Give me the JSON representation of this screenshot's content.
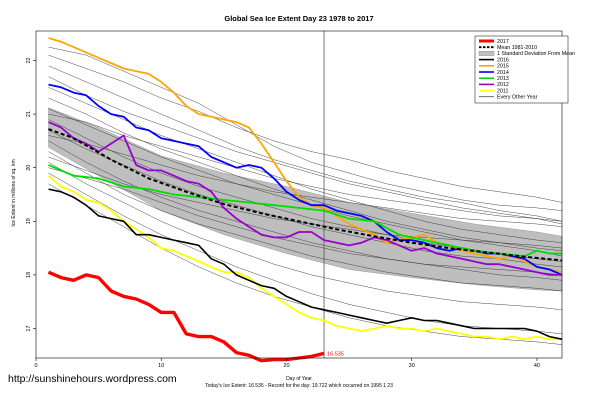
{
  "chart_data": {
    "type": "line",
    "title": "Global Sea Ice Extent Day 23 1978 to 2017",
    "xlabel": "Day of Year",
    "ylabel": "Ice Extent in millions of sq. km",
    "xlim": [
      0,
      42
    ],
    "ylim": [
      16.45,
      22.55
    ],
    "x_ticks": [
      0,
      10,
      20,
      30,
      40
    ],
    "y_ticks": [
      17,
      18,
      19,
      20,
      21,
      22
    ],
    "current_day": 23,
    "legend_position": "top-right",
    "legend": [
      {
        "label": "2017",
        "color": "#ff0000",
        "style": "thick"
      },
      {
        "label": "Mean 1981-2010",
        "color": "#000000",
        "style": "dashed"
      },
      {
        "label": "1 Standard Deviation From Mean",
        "color": "#c0c0c0",
        "style": "fill"
      },
      {
        "label": "2016",
        "color": "#000000",
        "style": "line"
      },
      {
        "label": "2015",
        "color": "#ffa500",
        "style": "line"
      },
      {
        "label": "2014",
        "color": "#0000ff",
        "style": "line"
      },
      {
        "label": "2013",
        "color": "#00dd00",
        "style": "line"
      },
      {
        "label": "2012",
        "color": "#9900cc",
        "style": "line"
      },
      {
        "label": "2011",
        "color": "#ffff00",
        "style": "line"
      },
      {
        "label": "Every Other Year",
        "color": "#000000",
        "style": "thin"
      }
    ],
    "band": {
      "x": [
        1,
        5,
        10,
        15,
        20,
        25,
        30,
        35,
        40,
        42
      ],
      "upper": [
        21.12,
        20.75,
        20.22,
        19.9,
        19.65,
        19.35,
        19.15,
        18.95,
        18.8,
        18.72
      ],
      "lower": [
        20.38,
        19.85,
        19.2,
        18.75,
        18.4,
        18.1,
        17.95,
        17.82,
        17.72,
        17.7
      ]
    },
    "mean": {
      "x": [
        1,
        3,
        6,
        9,
        12,
        15,
        18,
        21,
        24,
        27,
        30,
        33,
        36,
        39,
        42
      ],
      "y": [
        20.72,
        20.55,
        20.15,
        19.8,
        19.55,
        19.32,
        19.15,
        19.0,
        18.85,
        18.72,
        18.6,
        18.5,
        18.42,
        18.34,
        18.27
      ]
    },
    "highlight_series": [
      {
        "name": "2015",
        "color": "#ffa500",
        "width": 1.8,
        "x": [
          1,
          2,
          3,
          5,
          7,
          9,
          10,
          11,
          12,
          13,
          14,
          15,
          16,
          17,
          18,
          19,
          20,
          21,
          22,
          23,
          24,
          25,
          26,
          27,
          28,
          29,
          30,
          31,
          32,
          33,
          34,
          35,
          36,
          37,
          38,
          39,
          40,
          41,
          42
        ],
        "y": [
          22.42,
          22.35,
          22.25,
          22.05,
          21.85,
          21.75,
          21.6,
          21.4,
          21.15,
          21.0,
          20.95,
          20.9,
          20.85,
          20.75,
          20.45,
          20.1,
          19.75,
          19.45,
          19.3,
          19.25,
          19.1,
          18.95,
          18.85,
          18.75,
          18.6,
          18.65,
          18.7,
          18.75,
          18.6,
          18.55,
          18.45,
          18.4,
          18.35,
          18.3,
          18.35,
          18.25,
          18.15,
          18.1,
          18.05
        ]
      },
      {
        "name": "2014",
        "color": "#0000ff",
        "width": 1.8,
        "x": [
          1,
          2,
          3,
          4,
          5,
          6,
          7,
          8,
          9,
          10,
          11,
          12,
          13,
          14,
          15,
          16,
          17,
          18,
          19,
          20,
          21,
          22,
          23,
          24,
          25,
          26,
          27,
          28,
          29,
          30,
          31,
          32,
          33,
          34,
          35,
          36,
          37,
          38,
          39,
          40,
          41,
          42
        ],
        "y": [
          21.55,
          21.5,
          21.4,
          21.35,
          21.15,
          21.0,
          20.95,
          20.75,
          20.7,
          20.55,
          20.5,
          20.45,
          20.4,
          20.2,
          20.1,
          20.0,
          20.05,
          20.0,
          19.8,
          19.55,
          19.4,
          19.3,
          19.3,
          19.2,
          19.15,
          19.1,
          19.0,
          18.8,
          18.65,
          18.65,
          18.6,
          18.5,
          18.45,
          18.5,
          18.45,
          18.4,
          18.4,
          18.35,
          18.3,
          18.15,
          18.1,
          18.0
        ]
      },
      {
        "name": "2013",
        "color": "#00dd00",
        "width": 1.8,
        "x": [
          1,
          3,
          5,
          7,
          9,
          11,
          13,
          15,
          17,
          19,
          21,
          23,
          25,
          27,
          29,
          31,
          33,
          35,
          37,
          39,
          40,
          41,
          42
        ],
        "y": [
          20.05,
          19.85,
          19.8,
          19.65,
          19.6,
          19.5,
          19.45,
          19.4,
          19.35,
          19.3,
          19.25,
          19.2,
          19.05,
          19.0,
          18.75,
          18.65,
          18.55,
          18.45,
          18.4,
          18.35,
          18.45,
          18.4,
          18.4
        ]
      },
      {
        "name": "2012",
        "color": "#9900cc",
        "width": 1.8,
        "x": [
          1,
          2,
          3,
          4,
          5,
          6,
          7,
          8,
          9,
          10,
          11,
          12,
          13,
          14,
          15,
          16,
          17,
          18,
          19,
          20,
          21,
          22,
          23,
          24,
          25,
          26,
          27,
          28,
          29,
          30,
          31,
          32,
          33,
          34,
          35,
          36,
          37,
          38,
          39,
          40,
          41,
          42
        ],
        "y": [
          20.85,
          20.75,
          20.55,
          20.45,
          20.3,
          20.45,
          20.6,
          20.05,
          19.95,
          19.95,
          19.85,
          19.75,
          19.7,
          19.55,
          19.25,
          19.05,
          18.9,
          18.75,
          18.7,
          18.7,
          18.8,
          18.8,
          18.65,
          18.6,
          18.55,
          18.6,
          18.7,
          18.65,
          18.55,
          18.45,
          18.5,
          18.4,
          18.35,
          18.3,
          18.25,
          18.2,
          18.2,
          18.15,
          18.1,
          18.05,
          18.0,
          18.0
        ]
      },
      {
        "name": "2011",
        "color": "#ffff00",
        "width": 1.8,
        "x": [
          1,
          2,
          3,
          4,
          5,
          6,
          7,
          8,
          9,
          10,
          11,
          12,
          13,
          14,
          15,
          16,
          17,
          18,
          19,
          20,
          21,
          22,
          23,
          24,
          25,
          26,
          27,
          28,
          29,
          30,
          31,
          32,
          33,
          34,
          35,
          36,
          37,
          38,
          39,
          40,
          41,
          42
        ],
        "y": [
          19.85,
          19.65,
          19.55,
          19.4,
          19.35,
          19.2,
          19.0,
          18.85,
          18.7,
          18.5,
          18.45,
          18.35,
          18.25,
          18.15,
          18.05,
          18.05,
          17.95,
          17.75,
          17.6,
          17.45,
          17.3,
          17.2,
          17.15,
          17.05,
          17.0,
          16.95,
          17.0,
          17.05,
          17.0,
          17.0,
          16.95,
          17.0,
          16.95,
          16.9,
          16.85,
          16.85,
          16.8,
          16.85,
          16.8,
          16.85,
          16.8,
          16.8
        ]
      },
      {
        "name": "2016",
        "color": "#000000",
        "width": 1.6,
        "x": [
          1,
          2,
          3,
          4,
          5,
          6,
          7,
          8,
          9,
          10,
          11,
          12,
          13,
          14,
          15,
          16,
          17,
          18,
          19,
          20,
          21,
          22,
          23,
          24,
          25,
          26,
          27,
          28,
          29,
          30,
          31,
          32,
          33,
          34,
          35,
          36,
          37,
          38,
          39,
          40,
          41,
          42
        ],
        "y": [
          19.6,
          19.55,
          19.45,
          19.3,
          19.1,
          19.05,
          19.0,
          18.75,
          18.75,
          18.7,
          18.65,
          18.6,
          18.55,
          18.3,
          18.2,
          18.0,
          17.9,
          17.8,
          17.75,
          17.6,
          17.5,
          17.4,
          17.35,
          17.3,
          17.25,
          17.2,
          17.15,
          17.1,
          17.15,
          17.2,
          17.15,
          17.15,
          17.1,
          17.05,
          17.0,
          17.0,
          17.0,
          17.0,
          17.0,
          16.95,
          16.85,
          16.8
        ]
      },
      {
        "name": "2017",
        "color": "#ff0000",
        "width": 3.4,
        "x": [
          1,
          2,
          3,
          4,
          5,
          6,
          7,
          8,
          9,
          10,
          11,
          12,
          13,
          14,
          15,
          16,
          17,
          18,
          19,
          20,
          21,
          22,
          23
        ],
        "y": [
          18.05,
          17.95,
          17.9,
          18.0,
          17.95,
          17.7,
          17.6,
          17.55,
          17.45,
          17.3,
          17.3,
          16.9,
          16.85,
          16.85,
          16.75,
          16.55,
          16.5,
          16.4,
          16.42,
          16.42,
          16.45,
          16.48,
          16.535
        ]
      }
    ],
    "end_label": "16.535",
    "other_years": [
      [
        22.25,
        22.1,
        21.8,
        21.5,
        21.2,
        20.8,
        20.4,
        20.1,
        19.9,
        19.7,
        19.55,
        19.4,
        19.3,
        19.25,
        19.2
      ],
      [
        22.1,
        21.85,
        21.6,
        21.3,
        21.05,
        20.75,
        20.5,
        20.3,
        20.15,
        19.95,
        19.8,
        19.65,
        19.55,
        19.45,
        19.35
      ],
      [
        21.9,
        21.6,
        21.3,
        21.0,
        20.7,
        20.4,
        20.15,
        19.95,
        19.75,
        19.6,
        19.45,
        19.35,
        19.2,
        19.1,
        19.0
      ],
      [
        21.7,
        21.35,
        21.05,
        20.8,
        20.55,
        20.3,
        20.1,
        19.9,
        19.7,
        19.55,
        19.4,
        19.25,
        19.15,
        19.05,
        18.95
      ],
      [
        21.5,
        21.2,
        20.9,
        20.6,
        20.35,
        20.1,
        19.85,
        19.6,
        19.4,
        19.2,
        19.0,
        18.85,
        18.75,
        18.65,
        18.6
      ],
      [
        21.3,
        21.0,
        20.65,
        20.35,
        20.1,
        19.85,
        19.6,
        19.4,
        19.2,
        19.0,
        18.85,
        18.7,
        18.6,
        18.5,
        18.45
      ],
      [
        21.1,
        20.8,
        20.5,
        20.2,
        19.95,
        19.7,
        19.5,
        19.3,
        19.1,
        18.95,
        18.8,
        18.65,
        18.55,
        18.45,
        18.35
      ],
      [
        20.9,
        20.55,
        20.2,
        19.9,
        19.65,
        19.45,
        19.25,
        19.05,
        18.9,
        18.75,
        18.6,
        18.5,
        18.4,
        18.3,
        18.25
      ],
      [
        20.7,
        20.35,
        20.05,
        19.75,
        19.5,
        19.3,
        19.1,
        18.9,
        18.75,
        18.6,
        18.45,
        18.35,
        18.3,
        18.2,
        18.15
      ],
      [
        20.5,
        20.1,
        19.75,
        19.45,
        19.2,
        19.0,
        18.8,
        18.6,
        18.45,
        18.3,
        18.2,
        18.1,
        18.0,
        17.95,
        17.9
      ],
      [
        20.3,
        19.9,
        19.5,
        19.2,
        18.95,
        18.75,
        18.55,
        18.35,
        18.2,
        18.05,
        17.95,
        17.85,
        17.8,
        17.75,
        17.7
      ],
      [
        20.1,
        19.7,
        19.35,
        19.0,
        18.7,
        18.45,
        18.2,
        18.0,
        17.85,
        17.7,
        17.6,
        17.5,
        17.45,
        17.4,
        17.35
      ],
      [
        19.9,
        19.5,
        19.1,
        18.75,
        18.45,
        18.15,
        17.9,
        17.65,
        17.45,
        17.3,
        17.15,
        17.05,
        17.0,
        16.95,
        16.9
      ],
      [
        19.7,
        19.3,
        18.9,
        18.5,
        18.15,
        17.85,
        17.6,
        17.4,
        17.2,
        17.05,
        16.95,
        16.85,
        16.8,
        16.75,
        16.7
      ],
      [
        20.2,
        19.95,
        19.7,
        19.5,
        19.35,
        19.2,
        19.05,
        18.95,
        18.85,
        18.75,
        18.7,
        18.65,
        18.6,
        18.55,
        18.5
      ],
      [
        20.6,
        20.45,
        20.25,
        20.05,
        19.85,
        19.7,
        19.55,
        19.45,
        19.35,
        19.25,
        19.15,
        19.05,
        19.0,
        18.95,
        18.9
      ],
      [
        21.0,
        20.85,
        20.6,
        20.4,
        20.2,
        20.0,
        19.8,
        19.65,
        19.5,
        19.4,
        19.3,
        19.2,
        19.1,
        19.05,
        19.0
      ],
      [
        20.0,
        19.8,
        19.6,
        19.35,
        19.1,
        18.9,
        18.7,
        18.55,
        18.4,
        18.3,
        18.2,
        18.15,
        18.1,
        18.05,
        18.0
      ]
    ],
    "other_years_x": [
      1,
      4,
      7,
      10,
      13,
      16,
      19,
      22,
      25,
      28,
      31,
      34,
      37,
      40,
      42
    ]
  },
  "footer": {
    "url": "http://sunshinehours.wordpress.com",
    "caption": "Today's Ice Extent: 16.535  -  Record for the day: 19.722 which occurred on 1995 1 23"
  }
}
